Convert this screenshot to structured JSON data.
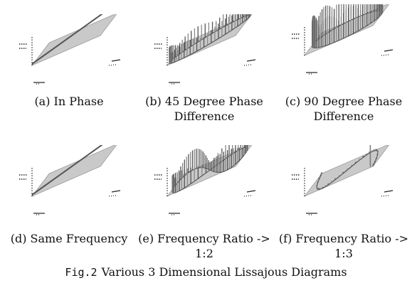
{
  "panels": [
    {
      "caption": "(a) In Phase"
    },
    {
      "caption": "(b) 45 Degree Phase Difference"
    },
    {
      "caption": "(c) 90 Degree Phase Difference"
    },
    {
      "caption": "(d) Same Frequency"
    },
    {
      "caption": "(e) Frequency Ratio -> 1:2"
    },
    {
      "caption": "(f) Frequency Ratio -> 1:3"
    }
  ],
  "figure_caption": {
    "label": "Fig.2",
    "title": "Various 3 Dimensional Lissajous Diagrams"
  }
}
